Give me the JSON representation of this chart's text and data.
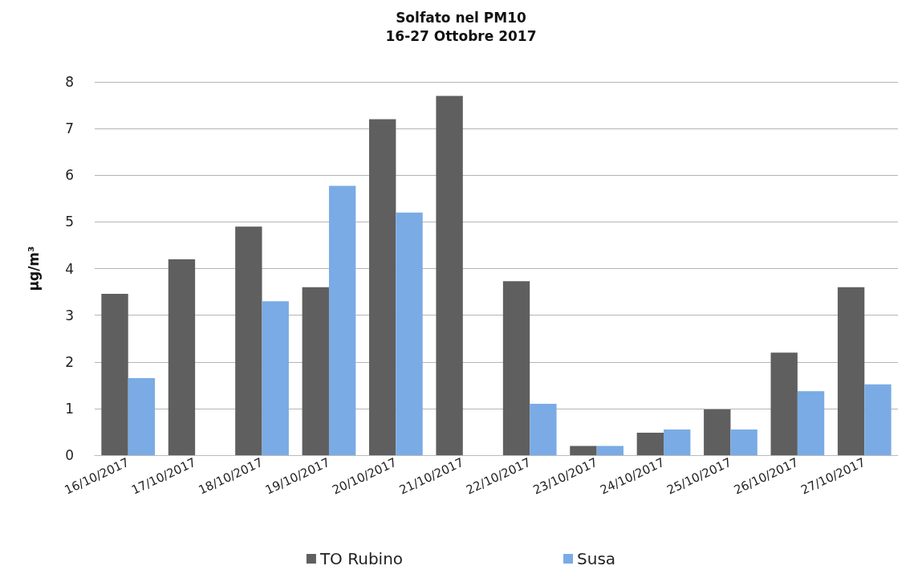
{
  "chart_data": {
    "type": "bar",
    "title": "Solfato nel PM10",
    "subtitle": "16-27 Ottobre 2017",
    "ylabel": "µg/m³",
    "categories": [
      "16/10/2017",
      "17/10/2017",
      "18/10/2017",
      "19/10/2017",
      "20/10/2017",
      "21/10/2017",
      "22/10/2017",
      "23/10/2017",
      "24/10/2017",
      "25/10/2017",
      "26/10/2017",
      "27/10/2017"
    ],
    "series": [
      {
        "name": "TO Rubino",
        "color": "#5f5f5f",
        "values": [
          3.46,
          4.2,
          4.9,
          3.6,
          7.2,
          7.7,
          3.73,
          0.2,
          0.48,
          0.98,
          2.2,
          3.6
        ]
      },
      {
        "name": "Susa",
        "color": "#7aabe5",
        "values": [
          1.65,
          null,
          3.3,
          5.77,
          5.2,
          null,
          1.1,
          0.2,
          0.55,
          0.55,
          1.37,
          1.52
        ]
      }
    ],
    "ylim": [
      0,
      8
    ],
    "yticks": [
      0,
      1,
      2,
      3,
      4,
      5,
      6,
      7,
      8
    ],
    "grid": "y",
    "legend": "bottom"
  }
}
